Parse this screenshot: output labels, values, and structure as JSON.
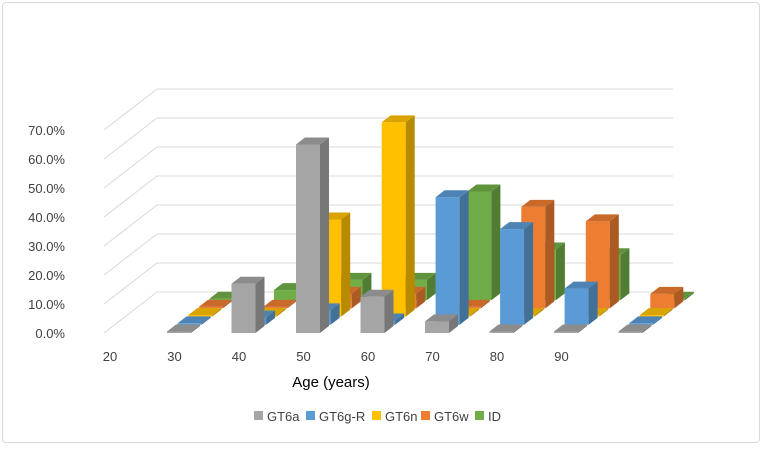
{
  "chart_data": {
    "type": "bar",
    "subtype": "3d-column",
    "title": "",
    "xlabel": "Age (years)",
    "ylabel": "",
    "categories": [
      "20",
      "30",
      "40",
      "50",
      "60",
      "70",
      "80",
      "90"
    ],
    "ytick_labels": [
      "0.0%",
      "10.0%",
      "20.0%",
      "30.0%",
      "40.0%",
      "50.0%",
      "60.0%",
      "70.0%"
    ],
    "ylim": [
      0,
      70
    ],
    "y_unit": "%",
    "legend_position": "bottom",
    "grid": true,
    "series": [
      {
        "name": "GT6a",
        "color": "#a5a5a5",
        "values": [
          0.0,
          17.0,
          65.0,
          12.5,
          4.0,
          0.0,
          0.0,
          0.0
        ]
      },
      {
        "name": "GT6g-R",
        "color": "#5b9bd5",
        "values": [
          0.0,
          2.5,
          5.0,
          1.5,
          44.0,
          33.0,
          12.5,
          0.0
        ]
      },
      {
        "name": "GT6n",
        "color": "#ffc000",
        "values": [
          0.0,
          0.0,
          33.5,
          67.0,
          0.0,
          0.0,
          0.0,
          0.0
        ]
      },
      {
        "name": "GT6w",
        "color": "#ed7d31",
        "values": [
          0.0,
          0.0,
          5.0,
          5.0,
          0.0,
          35.0,
          30.0,
          5.0
        ]
      },
      {
        "name": "ID",
        "color": "#70ad47",
        "values": [
          0.0,
          3.5,
          7.0,
          7.0,
          37.5,
          17.5,
          15.5,
          0.0
        ]
      }
    ]
  }
}
